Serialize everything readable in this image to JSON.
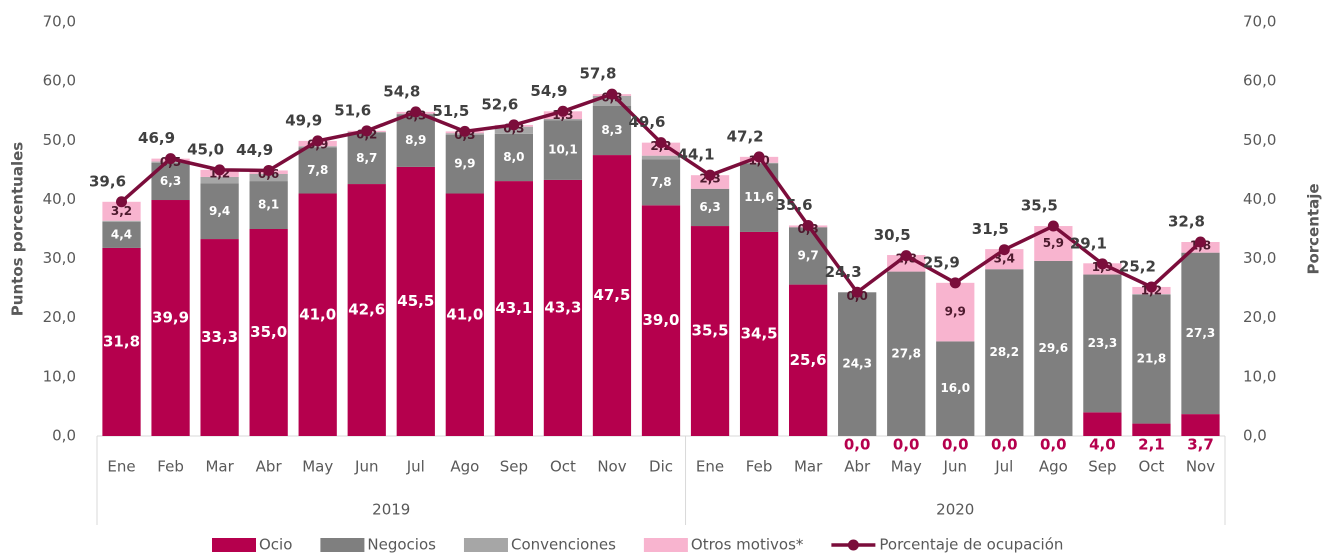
{
  "chart_data": {
    "type": "stacked_bar_line",
    "y_label": "Puntos porcentuales",
    "y2_label": "Porcentaje",
    "groups": [
      {
        "label": "2019",
        "categories": [
          "Ene",
          "Feb",
          "Mar",
          "Abr",
          "May",
          "Jun",
          "Jul",
          "Ago",
          "Sep",
          "Oct",
          "Nov",
          "Dic"
        ]
      },
      {
        "label": "2020",
        "categories": [
          "Ene",
          "Feb",
          "Mar",
          "Abr",
          "May",
          "Jun",
          "Jul",
          "Ago",
          "Sep",
          "Oct",
          "Nov"
        ]
      }
    ],
    "ylim": [
      0,
      70
    ],
    "yticks": [
      {
        "value": 0,
        "label": "0,0"
      },
      {
        "value": 10,
        "label": "10,0"
      },
      {
        "value": 20,
        "label": "20,0"
      },
      {
        "value": 30,
        "label": "30,0"
      },
      {
        "value": 40,
        "label": "40,0"
      },
      {
        "value": 50,
        "label": "50,0"
      },
      {
        "value": 60,
        "label": "60,0"
      },
      {
        "value": 70,
        "label": "70,0"
      }
    ],
    "y2lim": [
      0,
      70
    ],
    "y2ticks": [
      {
        "value": 0,
        "label": "0,0"
      },
      {
        "value": 10,
        "label": "10,0"
      },
      {
        "value": 20,
        "label": "20,0"
      },
      {
        "value": 30,
        "label": "30,0"
      },
      {
        "value": 40,
        "label": "40,0"
      },
      {
        "value": 50,
        "label": "50,0"
      },
      {
        "value": 60,
        "label": "60,0"
      },
      {
        "value": 70,
        "label": "70,0"
      }
    ],
    "series": [
      {
        "name": "Ocio",
        "color": "#b5004d",
        "kind": "bar",
        "values": [
          31.8,
          39.9,
          33.3,
          35.0,
          41.0,
          42.6,
          45.5,
          41.0,
          43.1,
          43.3,
          47.5,
          39.0,
          35.5,
          34.5,
          25.6,
          0.0,
          0.0,
          0.0,
          0.0,
          0.0,
          4.0,
          2.1,
          3.7
        ],
        "value_labels": [
          "31,8",
          "39,9",
          "33,3",
          "35,0",
          "41,0",
          "42,6",
          "45,5",
          "41,0",
          "43,1",
          "43,3",
          "47,5",
          "39,0",
          "35,5",
          "34,5",
          "25,6",
          "0,0",
          "0,0",
          "0,0",
          "0,0",
          "0,0",
          "4,0",
          "2,1",
          "3,7"
        ]
      },
      {
        "name": "Negocios",
        "color": "#7f7f7f",
        "kind": "bar",
        "values": [
          4.4,
          6.3,
          9.4,
          8.1,
          7.8,
          8.7,
          8.9,
          9.9,
          8.0,
          10.1,
          8.3,
          7.8,
          6.3,
          11.6,
          9.7,
          24.3,
          27.8,
          16.0,
          28.2,
          29.6,
          23.3,
          21.8,
          27.3
        ],
        "value_labels": [
          "4,4",
          "6,3",
          "9,4",
          "8,1",
          "7,8",
          "8,7",
          "8,9",
          "9,9",
          "8,0",
          "10,1",
          "8,3",
          "7,8",
          "6,3",
          "11,6",
          "9,7",
          "24,3",
          "27,8",
          "16,0",
          "28,2",
          "29,6",
          "23,3",
          "21,8",
          "27,3"
        ]
      },
      {
        "name": "Convenciones",
        "color": "#a6a6a6",
        "kind": "bar",
        "values": [
          0.2,
          0.2,
          1.1,
          1.2,
          0.2,
          0.1,
          0.1,
          0.3,
          1.2,
          0.2,
          1.7,
          0.6,
          0,
          0.1,
          0,
          0,
          0,
          0,
          0,
          0,
          0,
          0.1,
          0
        ]
      },
      {
        "name": "Otros motivos*",
        "color": "#f8b4cf",
        "kind": "bar",
        "values": [
          3.2,
          0.5,
          1.2,
          0.6,
          0.9,
          0.2,
          0.3,
          0.3,
          0.3,
          1.3,
          0.3,
          2.2,
          2.3,
          1.0,
          0.3,
          0.0,
          2.8,
          9.9,
          3.4,
          5.9,
          1.9,
          1.2,
          1.8
        ],
        "value_labels": [
          "3,2",
          "0,5",
          "1,2",
          "0,6",
          "0,9",
          "0,2",
          "0,3",
          "0,3",
          "0,3",
          "1,3",
          "0,3",
          "2,2",
          "2,3",
          "1,0",
          "0,3",
          "0,0",
          "2,8",
          "9,9",
          "3,4",
          "5,9",
          "1,9",
          "1,2",
          "1,8"
        ]
      },
      {
        "name": "Porcentaje de ocupación",
        "color": "#7b0d3b",
        "kind": "line",
        "axis": "y2",
        "values": [
          39.6,
          46.9,
          45.0,
          44.9,
          49.9,
          51.6,
          54.8,
          51.5,
          52.6,
          54.9,
          57.8,
          49.6,
          44.1,
          47.2,
          35.6,
          24.3,
          30.5,
          25.9,
          31.5,
          35.5,
          29.1,
          25.2,
          32.8
        ],
        "value_labels": [
          "39,6",
          "46,9",
          "45,0",
          "44,9",
          "49,9",
          "51,6",
          "54,8",
          "51,5",
          "52,6",
          "54,9",
          "57,8",
          "49,6",
          "44,1",
          "47,2",
          "35,6",
          "24,3",
          "30,5",
          "25,9",
          "31,5",
          "35,5",
          "29,1",
          "25,2",
          "32,8"
        ]
      }
    ]
  }
}
